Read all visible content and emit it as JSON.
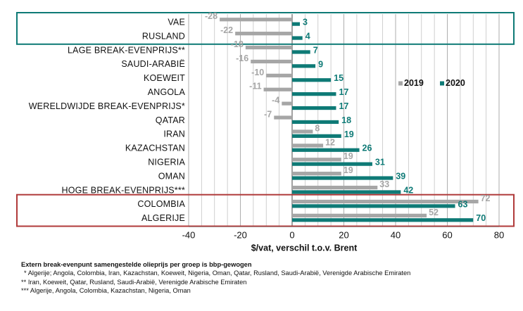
{
  "chart_data": {
    "type": "bar",
    "orientation": "horizontal",
    "categories": [
      "VAE",
      "RUSLAND",
      "LAGE BREAK-EVENPRIJS**",
      "SAUDI-ARABIË",
      "KOEWEIT",
      "ANGOLA",
      "WERELDWIJDE BREAK-EVENPRIJS*",
      "QATAR",
      "IRAN",
      "KAZACHSTAN",
      "NIGERIA",
      "OMAN",
      "HOGE BREAK-EVENPRIJS***",
      "COLOMBIA",
      "ALGERIJE"
    ],
    "series": [
      {
        "name": "2019",
        "color": "#a6a6a6",
        "values": [
          -28,
          -22,
          -18,
          -16,
          -10,
          -11,
          -4,
          -7,
          8,
          12,
          19,
          19,
          33,
          72,
          52
        ]
      },
      {
        "name": "2020",
        "color": "#0e7a76",
        "values": [
          3,
          4,
          7,
          9,
          15,
          17,
          17,
          18,
          19,
          26,
          31,
          39,
          42,
          63,
          70
        ]
      }
    ],
    "xlabel": "$/vat, verschil t.o.v. Brent",
    "xlim": [
      -40,
      80
    ],
    "xticks": [
      "-40",
      "-20",
      "0",
      "20",
      "40",
      "60",
      "80"
    ],
    "grid": true,
    "legend_position": "right, near top",
    "highlight_boxes": [
      {
        "categories": [
          "VAE",
          "RUSLAND"
        ],
        "color": "#0e7a76"
      },
      {
        "categories": [
          "COLOMBIA",
          "ALGERIJE"
        ],
        "color": "#b03a3a"
      }
    ]
  },
  "notes": {
    "title": "Extern break-evenpunt samengestelde olieprijs per groep is bbp-gewogen",
    "lines": [
      "* Algerije; Angola, Colombia, Iran, Kazachstan, Koeweit, Nigeria, Oman, Qatar, Rusland, Saudi-Arabië, Verenigde Arabische Emiraten",
      "** Iran, Koeweit, Qatar, Rusland, Saudi-Arabië, Verenigde Arabische Emiraten",
      "*** Algerije, Angola, Colombia, Kazachstan, Nigeria, Oman"
    ]
  }
}
